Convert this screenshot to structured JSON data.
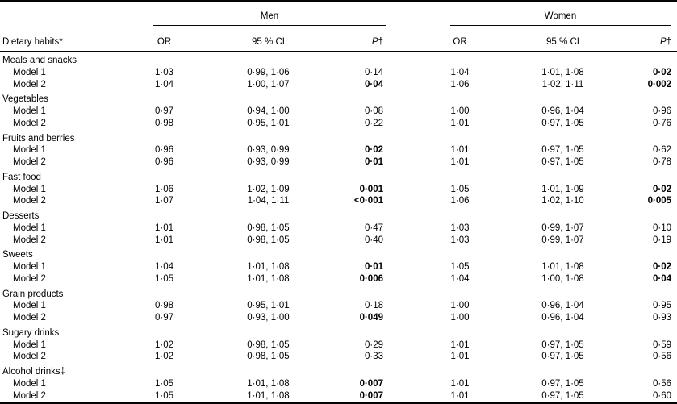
{
  "colors": {
    "text": "#000000",
    "background": "#ffffff",
    "rule": "#050505"
  },
  "table": {
    "stub_header": "Dietary habits*",
    "groups": {
      "men": "Men",
      "women": "Women"
    },
    "sub_headers": {
      "or": "OR",
      "ci": "95 % CI",
      "p": "P",
      "p_dagger": "†"
    },
    "rows": [
      {
        "category": "Meals and snacks",
        "models": [
          {
            "label": "Model 1",
            "men": {
              "or": "1·03",
              "ci": "0·99, 1·06",
              "p": "0·14",
              "p_bold": false
            },
            "women": {
              "or": "1·04",
              "ci": "1·01, 1·08",
              "p": "0·02",
              "p_bold": true
            }
          },
          {
            "label": "Model 2",
            "men": {
              "or": "1·04",
              "ci": "1·00, 1·07",
              "p": "0·04",
              "p_bold": true
            },
            "women": {
              "or": "1·06",
              "ci": "1·02, 1·11",
              "p": "0·002",
              "p_bold": true
            }
          }
        ]
      },
      {
        "category": "Vegetables",
        "models": [
          {
            "label": "Model 1",
            "men": {
              "or": "0·97",
              "ci": "0·94, 1·00",
              "p": "0·08",
              "p_bold": false
            },
            "women": {
              "or": "1·00",
              "ci": "0·96, 1·04",
              "p": "0·96",
              "p_bold": false
            }
          },
          {
            "label": "Model 2",
            "men": {
              "or": "0·98",
              "ci": "0·95, 1·01",
              "p": "0·22",
              "p_bold": false
            },
            "women": {
              "or": "1·01",
              "ci": "0·97, 1·05",
              "p": "0·76",
              "p_bold": false
            }
          }
        ]
      },
      {
        "category": "Fruits and berries",
        "models": [
          {
            "label": "Model 1",
            "men": {
              "or": "0·96",
              "ci": "0·93, 0·99",
              "p": "0·02",
              "p_bold": true
            },
            "women": {
              "or": "1·01",
              "ci": "0·97, 1·05",
              "p": "0·62",
              "p_bold": false
            }
          },
          {
            "label": "Model 2",
            "men": {
              "or": "0·96",
              "ci": "0·93, 0·99",
              "p": "0·01",
              "p_bold": true
            },
            "women": {
              "or": "1·01",
              "ci": "0·97, 1·05",
              "p": "0·78",
              "p_bold": false
            }
          }
        ]
      },
      {
        "category": "Fast food",
        "models": [
          {
            "label": "Model 1",
            "men": {
              "or": "1·06",
              "ci": "1·02, 1·09",
              "p": "0·001",
              "p_bold": true
            },
            "women": {
              "or": "1·05",
              "ci": "1·01, 1·09",
              "p": "0·02",
              "p_bold": true
            }
          },
          {
            "label": "Model 2",
            "men": {
              "or": "1·07",
              "ci": "1·04, 1·11",
              "p": "<0·001",
              "p_bold": true
            },
            "women": {
              "or": "1·06",
              "ci": "1·02, 1·10",
              "p": "0·005",
              "p_bold": true
            }
          }
        ]
      },
      {
        "category": "Desserts",
        "models": [
          {
            "label": "Model 1",
            "men": {
              "or": "1·01",
              "ci": "0·98, 1·05",
              "p": "0·47",
              "p_bold": false
            },
            "women": {
              "or": "1·03",
              "ci": "0·99, 1·07",
              "p": "0·10",
              "p_bold": false
            }
          },
          {
            "label": "Model 2",
            "men": {
              "or": "1·01",
              "ci": "0·98, 1·05",
              "p": "0·40",
              "p_bold": false
            },
            "women": {
              "or": "1·03",
              "ci": "0·99, 1·07",
              "p": "0·19",
              "p_bold": false
            }
          }
        ]
      },
      {
        "category": "Sweets",
        "models": [
          {
            "label": "Model 1",
            "men": {
              "or": "1·04",
              "ci": "1·01, 1·08",
              "p": "0·01",
              "p_bold": true
            },
            "women": {
              "or": "1·05",
              "ci": "1·01, 1·08",
              "p": "0·02",
              "p_bold": true
            }
          },
          {
            "label": "Model 2",
            "men": {
              "or": "1·05",
              "ci": "1·01, 1·08",
              "p": "0·006",
              "p_bold": true
            },
            "women": {
              "or": "1·04",
              "ci": "1·00, 1·08",
              "p": "0·04",
              "p_bold": true
            }
          }
        ]
      },
      {
        "category": "Grain products",
        "models": [
          {
            "label": "Model 1",
            "men": {
              "or": "0·98",
              "ci": "0·95, 1·01",
              "p": "0·18",
              "p_bold": false
            },
            "women": {
              "or": "1·00",
              "ci": "0·96, 1·04",
              "p": "0·95",
              "p_bold": false
            }
          },
          {
            "label": "Model 2",
            "men": {
              "or": "0·97",
              "ci": "0·93, 1·00",
              "p": "0·049",
              "p_bold": true
            },
            "women": {
              "or": "1·00",
              "ci": "0·96, 1·04",
              "p": "0·93",
              "p_bold": false
            }
          }
        ]
      },
      {
        "category": "Sugary drinks",
        "models": [
          {
            "label": "Model 1",
            "men": {
              "or": "1·02",
              "ci": "0·98, 1·05",
              "p": "0·29",
              "p_bold": false
            },
            "women": {
              "or": "1·01",
              "ci": "0·97, 1·05",
              "p": "0·59",
              "p_bold": false
            }
          },
          {
            "label": "Model 2",
            "men": {
              "or": "1·02",
              "ci": "0·98, 1·05",
              "p": "0·33",
              "p_bold": false
            },
            "women": {
              "or": "1·01",
              "ci": "0·97, 1·05",
              "p": "0·56",
              "p_bold": false
            }
          }
        ]
      },
      {
        "category": "Alcohol drinks‡",
        "models": [
          {
            "label": "Model 1",
            "men": {
              "or": "1·05",
              "ci": "1·01, 1·08",
              "p": "0·007",
              "p_bold": true
            },
            "women": {
              "or": "1·01",
              "ci": "0·97, 1·05",
              "p": "0·56",
              "p_bold": false
            }
          },
          {
            "label": "Model 2",
            "men": {
              "or": "1·05",
              "ci": "1·01, 1·08",
              "p": "0·007",
              "p_bold": true
            },
            "women": {
              "or": "1·01",
              "ci": "0·97, 1·05",
              "p": "0·60",
              "p_bold": false
            }
          }
        ]
      }
    ]
  }
}
